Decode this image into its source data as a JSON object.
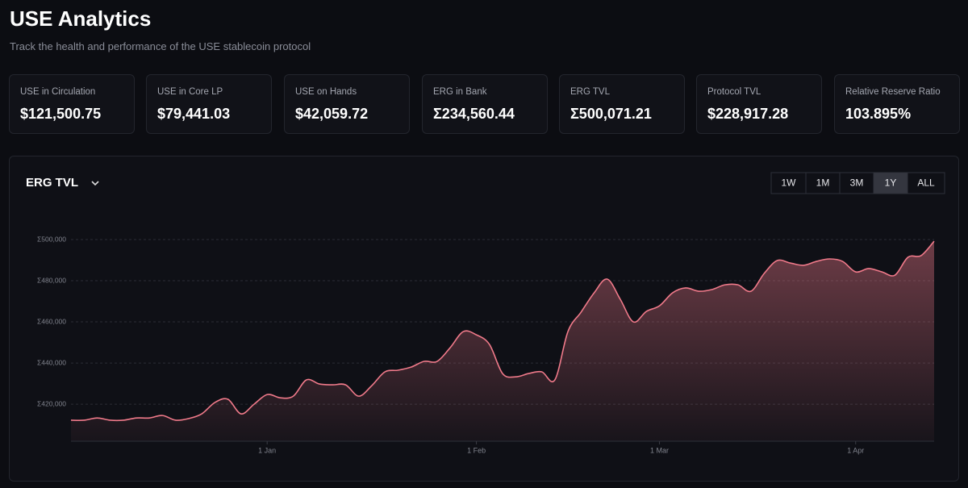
{
  "header": {
    "title": "USE Analytics",
    "subtitle": "Track the health and performance of the USE stablecoin protocol"
  },
  "cards": [
    {
      "label": "USE in Circulation",
      "value": "$121,500.75"
    },
    {
      "label": "USE in Core LP",
      "value": "$79,441.03"
    },
    {
      "label": "USE on Hands",
      "value": "$42,059.72"
    },
    {
      "label": "ERG in Bank",
      "value": "Σ234,560.44"
    },
    {
      "label": "ERG TVL",
      "value": "Σ500,071.21"
    },
    {
      "label": "Protocol TVL",
      "value": "$228,917.28"
    },
    {
      "label": "Relative Reserve Ratio",
      "value": "103.895%"
    }
  ],
  "chart_data": {
    "type": "area",
    "title": "ERG TVL",
    "ranges": [
      "1W",
      "1M",
      "3M",
      "1Y",
      "ALL"
    ],
    "selected_range": 3,
    "color": "#f07a8a",
    "grid": true,
    "ylim": [
      402000,
      510000
    ],
    "yticks": [
      {
        "value": 420000,
        "label": "Σ420,000"
      },
      {
        "value": 440000,
        "label": "Σ440,000"
      },
      {
        "value": 460000,
        "label": "Σ460,000"
      },
      {
        "value": 480000,
        "label": "Σ480,000"
      },
      {
        "value": 500000,
        "label": "Σ500,000"
      }
    ],
    "categories": [
      null,
      null,
      null,
      null,
      null,
      null,
      null,
      null,
      null,
      null,
      null,
      null,
      null,
      null,
      null,
      "1 Jan",
      null,
      null,
      null,
      null,
      null,
      null,
      null,
      null,
      null,
      null,
      null,
      null,
      null,
      null,
      null,
      "1 Feb",
      null,
      null,
      null,
      null,
      null,
      null,
      null,
      null,
      null,
      null,
      null,
      null,
      null,
      "1 Mar",
      null,
      null,
      null,
      null,
      null,
      null,
      null,
      null,
      null,
      null,
      null,
      null,
      null,
      null,
      "1 Apr",
      null,
      null,
      null,
      null,
      null,
      null
    ],
    "values": [
      412200,
      412200,
      413300,
      412200,
      412200,
      413300,
      413300,
      414500,
      412200,
      413000,
      415300,
      420800,
      422400,
      415300,
      420000,
      424700,
      423100,
      423900,
      431800,
      429800,
      429400,
      429400,
      423900,
      429000,
      435700,
      436500,
      438000,
      440800,
      440800,
      447500,
      455300,
      453700,
      449000,
      434900,
      433300,
      434900,
      435700,
      431800,
      455300,
      464700,
      474100,
      480800,
      471000,
      460000,
      465100,
      467800,
      474100,
      476500,
      474900,
      475700,
      478000,
      478000,
      474900,
      483500,
      489800,
      488600,
      487500,
      489400,
      490600,
      489400,
      484300,
      485900,
      484300,
      482700,
      491400,
      492200,
      499200
    ]
  }
}
